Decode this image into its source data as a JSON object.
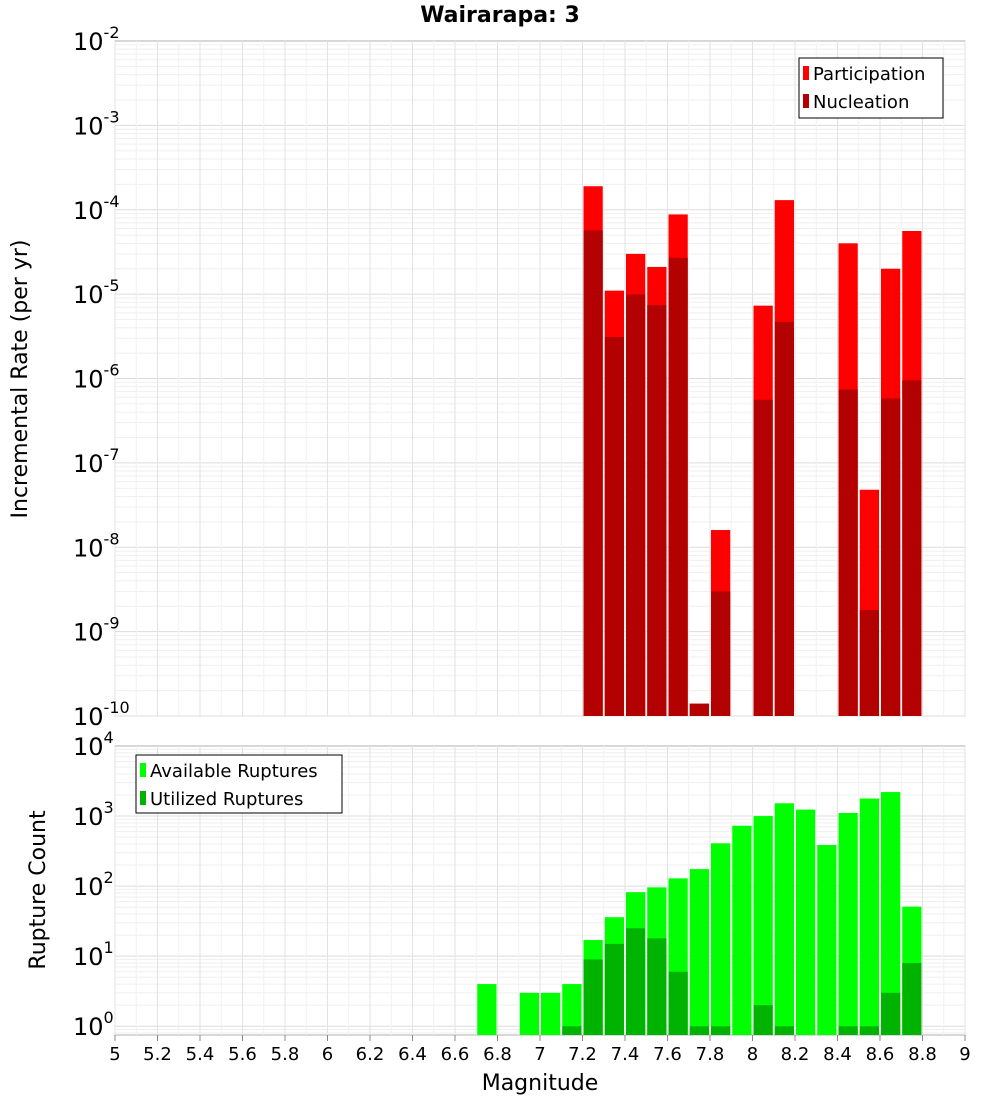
{
  "chart_data": [
    {
      "type": "bar",
      "title": "Wairarapa: 3",
      "xlabel": "Magnitude",
      "ylabel": "Incremental Rate (per yr)",
      "yscale": "log",
      "ylim": [
        1e-10,
        0.01
      ],
      "xlim": [
        5,
        9
      ],
      "y_tick_mantissa": "10",
      "y_tick_exponents": [
        "-10",
        "-9",
        "-8",
        "-7",
        "-6",
        "-5",
        "-4",
        "-3",
        "-2"
      ],
      "legend_position": "top-right",
      "colors": {
        "Participation": "#ff0000",
        "Nucleation": "#b30000"
      },
      "bin_width": 0.1,
      "x": [
        7.25,
        7.35,
        7.45,
        7.55,
        7.65,
        7.75,
        7.85,
        8.05,
        8.15,
        8.45,
        8.55,
        8.65,
        8.75
      ],
      "series": [
        {
          "name": "Participation",
          "values": [
            0.00019,
            1.1e-05,
            3e-05,
            2.1e-05,
            8.8e-05,
            1.4e-10,
            1.6e-08,
            7.3e-06,
            0.00013,
            4e-05,
            4.8e-08,
            2e-05,
            5.6e-05
          ]
        },
        {
          "name": "Nucleation",
          "values": [
            5.7e-05,
            3.1e-06,
            9.9e-06,
            7.4e-06,
            2.7e-05,
            1.4e-10,
            3e-09,
            5.6e-07,
            4.7e-06,
            7.4e-07,
            1.8e-09,
            5.8e-07,
            9.5e-07
          ]
        }
      ]
    },
    {
      "type": "bar",
      "xlabel": "Magnitude",
      "ylabel": "Rupture Count",
      "yscale": "log",
      "ylim": [
        0.75,
        10000
      ],
      "xlim": [
        5,
        9
      ],
      "y_tick_mantissa": "10",
      "y_tick_exponents": [
        "0",
        "1",
        "2",
        "3",
        "4"
      ],
      "x_tick_labels": [
        "5",
        "5.2",
        "5.4",
        "5.6",
        "5.8",
        "6",
        "6.2",
        "6.4",
        "6.6",
        "6.8",
        "7",
        "7.2",
        "7.4",
        "7.6",
        "7.8",
        "8",
        "8.2",
        "8.4",
        "8.6",
        "8.8",
        "9"
      ],
      "legend_position": "top-left",
      "colors": {
        "Available Ruptures": "#00ff00",
        "Utilized Ruptures": "#00b300"
      },
      "bin_width": 0.1,
      "x": [
        6.75,
        6.95,
        7.05,
        7.15,
        7.25,
        7.35,
        7.45,
        7.55,
        7.65,
        7.75,
        7.85,
        7.95,
        8.05,
        8.15,
        8.25,
        8.35,
        8.45,
        8.55,
        8.65,
        8.75
      ],
      "series": [
        {
          "name": "Available Ruptures",
          "values": [
            4,
            3,
            3,
            4,
            17,
            36,
            82,
            96,
            129,
            175,
            409,
            727,
            1000,
            1521,
            1237,
            386,
            1107,
            1780,
            2200,
            51
          ]
        },
        {
          "name": "Utilized Ruptures",
          "values": [
            0,
            0,
            0,
            1,
            9,
            15,
            25,
            18,
            6,
            1,
            1,
            0,
            2,
            1,
            0,
            0,
            1,
            1,
            3,
            8
          ]
        }
      ]
    }
  ]
}
